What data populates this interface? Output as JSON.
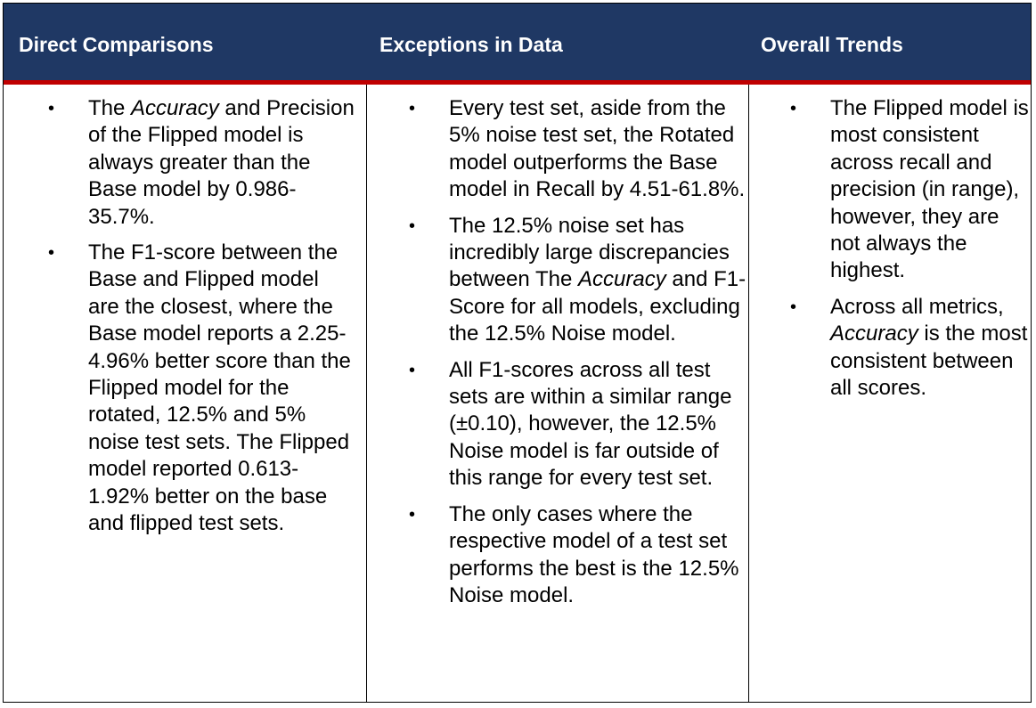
{
  "colors": {
    "header_bg": "#1f3864",
    "header_rule": "#c00000",
    "header_text": "#ffffff"
  },
  "icons": {
    "bullet": "bullet-icon"
  },
  "table": {
    "headers": [
      "Direct Comparisons",
      "Exceptions in Data",
      "Overall Trends"
    ],
    "bullet_glyph": "•",
    "direct_comparisons": [
      {
        "pre": "The ",
        "em": "Accuracy",
        "post": " and Precision of the Flipped model is always greater than the Base model by 0.986-35.7%."
      },
      {
        "pre": "The F1-score between the Base and Flipped model are the closest, where the Base model reports a 2.25-4.96% better score than the Flipped model for the rotated, 12.5% and 5% noise test sets. The Flipped model reported 0.613-1.92% better on the base and flipped test sets.",
        "em": "",
        "post": ""
      }
    ],
    "exceptions_in_data": [
      {
        "pre": "Every test set, aside from the 5% noise test set, the Rotated model outperforms the Base model in Recall by 4.51-61.8%.",
        "em": "",
        "post": ""
      },
      {
        "pre": "The 12.5% noise set has incredibly large discrepancies between The ",
        "em": "Accuracy",
        "post": " and F1-Score for all models, excluding the 12.5% Noise model."
      },
      {
        "pre": "All F1-scores across all test sets are within a similar range (±0.10), however, the 12.5% Noise model is far outside of this range for every test set.",
        "em": "",
        "post": ""
      },
      {
        "pre": "The only cases where the respective model of a test set performs the best is the 12.5% Noise model.",
        "em": "",
        "post": ""
      }
    ],
    "overall_trends": [
      {
        "pre": "The Flipped model is most consistent across recall and precision (in range), however, they are not always the highest.",
        "em": "",
        "post": ""
      },
      {
        "pre": "Across all metrics, ",
        "em": "Accuracy",
        "post": " is the most consistent between all scores."
      }
    ]
  }
}
